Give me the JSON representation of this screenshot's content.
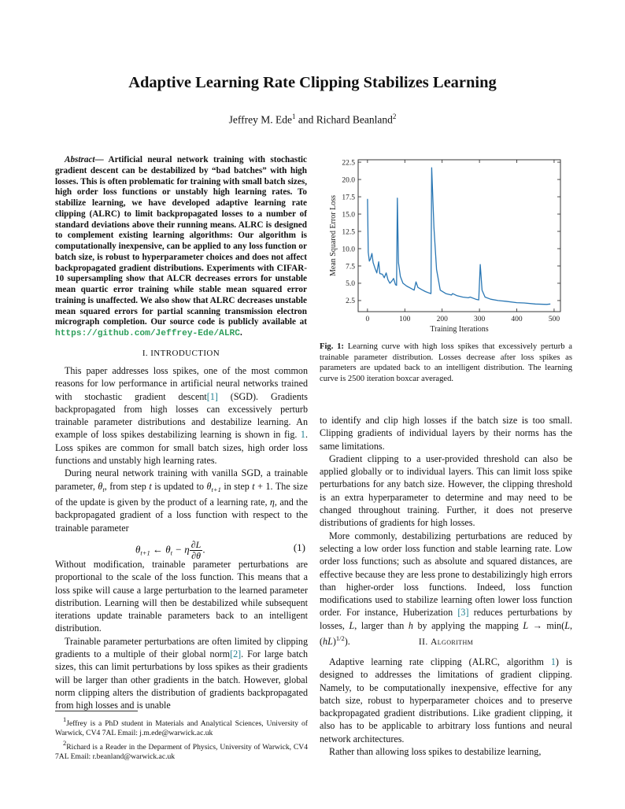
{
  "title": "Adaptive Learning Rate Clipping Stabilizes Learning",
  "authors": {
    "a1": "Jeffrey M. Ede",
    "a1_mark": "1",
    "and": " and ",
    "a2": "Richard Beanland",
    "a2_mark": "2"
  },
  "abstract": {
    "label": "Abstract",
    "dash": "— ",
    "text": "Artificial neural network training with stochastic gradient descent can be destabilized by “bad batches” with high losses. This is often problematic for training with small batch sizes, high order loss functions or unstably high learning rates. To stabilize learning, we have developed adaptive learning rate clipping (ALRC) to limit backpropagated losses to a number of standard deviations above their running means. ALRC is designed to complement existing learning algorithms: Our algorithm is computationally inexpensive, can be applied to any loss function or batch size, is robust to hyperparameter choices and does not affect backpropagated gradient distributions. Experiments with CIFAR-10 supersampling show that ALCR decreases errors for unstable mean quartic error training while stable mean squared error training is unaffected. We also show that ALRC decreases unstable mean squared errors for partial scanning transmission electron micrograph completion. Our source code is publicly available at ",
    "url": "https://github.com/Jeffrey-Ede/ALRC",
    "end": "."
  },
  "sections": {
    "intro": "I. Introduction",
    "algorithm_num": "II. ",
    "algorithm": "Algorithm"
  },
  "left_paragraphs": [
    {
      "indent": true,
      "segs": [
        {
          "t": "This paper addresses loss spikes, one of the most common reasons for low performance in artificial neural networks trained with stochastic gradient descent"
        },
        {
          "t": "[1]",
          "c": "ref"
        },
        {
          "t": " (SGD). Gradients backpropagated from high losses can excessively perturb trainable parameter distributions and destabilize learning. An example of loss spikes destabilizing learning is shown in fig. "
        },
        {
          "t": "1",
          "c": "ref"
        },
        {
          "t": ". Loss spikes are common for small batch sizes, high order loss functions and unstably high learning rates."
        }
      ]
    },
    {
      "indent": true,
      "segs": [
        {
          "t": "During neural network training with vanilla SGD, a trainable parameter, "
        },
        {
          "t": "θ",
          "c": "m"
        },
        {
          "t": "t",
          "c": "sub"
        },
        {
          "t": ", from step "
        },
        {
          "t": "t",
          "c": "m"
        },
        {
          "t": " is updated to "
        },
        {
          "t": "θ",
          "c": "m"
        },
        {
          "t": "t+1",
          "c": "sub"
        },
        {
          "t": " in step "
        },
        {
          "t": "t",
          "c": "m"
        },
        {
          "t": " + 1. The size of the update is given by the product of a learning rate, "
        },
        {
          "t": "η",
          "c": "m"
        },
        {
          "t": ", and the backpropagated gradient of a loss function with respect to the trainable parameter"
        }
      ]
    }
  ],
  "equation": {
    "lhs": "θ",
    "lhs_sub": "t+1",
    "arrow": " ← ",
    "theta": "θ",
    "theta_sub": "t",
    "minus": " − η",
    "num": "∂L",
    "den": "∂θ",
    "end": ".",
    "number": "(1)"
  },
  "left_paragraphs_2": [
    {
      "indent": false,
      "segs": [
        {
          "t": "Without modification, trainable parameter perturbations are proportional to the scale of the loss function. This means that a loss spike will cause a large perturbation to the learned parameter distribution. Learning will then be destabilized while subsequent iterations update trainable parameters back to an intelligent distribution."
        }
      ]
    },
    {
      "indent": true,
      "segs": [
        {
          "t": "Trainable parameter perturbations are often limited by clipping gradients to a multiple of their global norm"
        },
        {
          "t": "[2]",
          "c": "ref"
        },
        {
          "t": ". For large batch sizes, this can limit perturbations by loss spikes as their gradients will be larger than other gradients in the batch. However, global norm clipping alters the distribution of gradients backpropagated from high losses and is unable"
        }
      ]
    }
  ],
  "footnotes": [
    {
      "mark": "1",
      "text": "Jeffrey is a PhD student in Materials and Analytical Sciences, University of Warwick, CV4 7AL Email: j.m.ede@warwick.ac.uk"
    },
    {
      "mark": "2",
      "text": "Richard is a Reader in the Deparment of Physics, University of Warwick, CV4 7AL Email: r.beanland@warwick.ac.uk"
    }
  ],
  "figure": {
    "label": "Fig. 1:",
    "caption": " Learning curve with high loss spikes that excessively perturb a trainable parameter distribution. Losses decrease after loss spikes as parameters are updated back to an intelligent distribution. The learning curve is 2500 iteration boxcar averaged."
  },
  "right_paragraphs": [
    {
      "indent": false,
      "segs": [
        {
          "t": "to identify and clip high losses if the batch size is too small. Clipping gradients of individual layers by their norms has the same limitations."
        }
      ]
    },
    {
      "indent": true,
      "segs": [
        {
          "t": "Gradient clipping to a user-provided threshold can also be applied globally or to individual layers. This can limit loss spike perturbations for any batch size. However, the clipping threshold is an extra hyperparameter to determine and may need to be changed throughout training. Further, it does not preserve distributions of gradients for high losses."
        }
      ]
    },
    {
      "indent": true,
      "segs": [
        {
          "t": "More commonly, destabilizing perturbations are reduced by selecting a low order loss function and stable learning rate. Low order loss functions; such as absolute and squared distances, are effective because they are less prone to destabilizingly high errors than higher-order loss functions. Indeed, loss function modifications used to stabilize learning often lower loss function order. For instance, Huberization "
        },
        {
          "t": "[3]",
          "c": "ref"
        },
        {
          "t": " reduces perturbations by losses, "
        },
        {
          "t": "L",
          "c": "m"
        },
        {
          "t": ", larger than "
        },
        {
          "t": "h",
          "c": "m"
        },
        {
          "t": " by applying the mapping "
        },
        {
          "t": "L",
          "c": "m"
        },
        {
          "t": " → min("
        },
        {
          "t": "L",
          "c": "m"
        },
        {
          "t": ", ("
        },
        {
          "t": "hL",
          "c": "m"
        },
        {
          "t": ")"
        },
        {
          "t": "1/2",
          "c": "sup"
        },
        {
          "t": ")."
        }
      ]
    }
  ],
  "right_paragraphs_2": [
    {
      "indent": true,
      "segs": [
        {
          "t": "Adaptive learning rate clipping (ALRC, algorithm "
        },
        {
          "t": "1",
          "c": "ref"
        },
        {
          "t": ") is designed to addresses the limitations of gradient clipping. Namely, to be computationally inexpensive, effective for any batch size, robust to hyperparameter choices and to preserve backpropagated gradient distributions. Like gradient clipping, it also has to be applicable to arbitrary loss funtions and neural network architectures."
        }
      ]
    },
    {
      "indent": true,
      "segs": [
        {
          "t": "Rather than allowing loss spikes to destabilize learning,"
        }
      ]
    }
  ],
  "chart_data": {
    "type": "line",
    "xlabel": "Training Iterations",
    "ylabel": "Mean Squared Error Loss",
    "xlim": [
      -25,
      517
    ],
    "ylim": [
      0.9,
      22.85
    ],
    "xticks": [
      0,
      100,
      200,
      300,
      400,
      500
    ],
    "yticks": [
      2.5,
      5.0,
      7.5,
      10.0,
      12.5,
      15.0,
      17.5,
      20.0,
      22.5
    ],
    "grid": false,
    "color": "#2a77b4",
    "x": [
      0,
      2,
      5,
      8,
      12,
      15,
      20,
      25,
      30,
      33,
      40,
      45,
      50,
      55,
      60,
      65,
      70,
      75,
      78,
      80,
      83,
      88,
      95,
      105,
      115,
      125,
      130,
      135,
      145,
      155,
      165,
      170,
      172,
      178,
      185,
      195,
      210,
      225,
      228,
      240,
      255,
      270,
      275,
      290,
      298,
      302,
      307,
      315,
      330,
      350,
      370,
      400,
      420,
      450,
      480,
      490
    ],
    "y": [
      17.2,
      9.5,
      8.2,
      8.5,
      9.3,
      8.0,
      7.2,
      6.5,
      8.1,
      6.4,
      6.3,
      5.8,
      6.5,
      5.5,
      5.0,
      5.3,
      5.7,
      4.8,
      4.7,
      17.3,
      8.0,
      6.0,
      5.0,
      4.6,
      4.3,
      4.0,
      5.2,
      4.4,
      4.1,
      3.8,
      3.6,
      3.5,
      21.7,
      13.0,
      7.0,
      4.0,
      3.5,
      3.3,
      3.5,
      3.2,
      3.0,
      2.9,
      3.0,
      2.7,
      2.6,
      7.7,
      4.0,
      3.0,
      2.7,
      2.5,
      2.4,
      2.2,
      2.15,
      2.0,
      1.95,
      2.0
    ]
  }
}
